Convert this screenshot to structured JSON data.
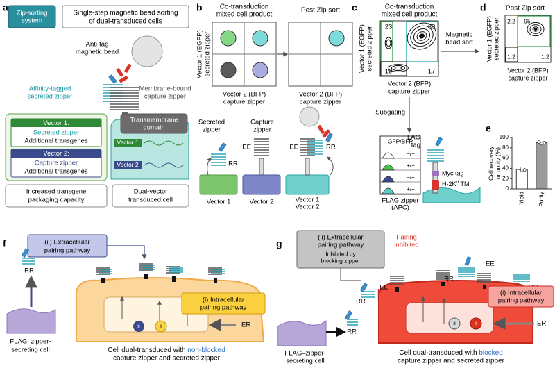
{
  "panel_letters": [
    "a",
    "b",
    "c",
    "d",
    "e",
    "f",
    "g"
  ],
  "a": {
    "badge": [
      "Zip-sorting",
      "system"
    ],
    "heading": [
      "Single-step magnetic bead sorting",
      "of dual-transduced cells"
    ],
    "bead": [
      "Anti-tag",
      "magnetic bead"
    ],
    "secreted": [
      "Affinity-tagged",
      "secreted zipper"
    ],
    "capture": [
      "Membrane-bound",
      "capture zipper"
    ],
    "tm": [
      "Transmembrane",
      "domain"
    ],
    "cell_vectors": [
      "Vector 1",
      "Vector 2"
    ],
    "vector1": {
      "title": "Vector 1:",
      "lines": [
        "Secreted zipper",
        "Additional transgenes"
      ]
    },
    "vector2": {
      "title": "Vector 2:",
      "lines": [
        "Capture zipper",
        "Additional transgenes"
      ]
    },
    "capacity": [
      "Increased transgene",
      "packaging capacity"
    ],
    "cell": [
      "Dual-vector",
      "transduced cell"
    ]
  },
  "b": {
    "before_title": [
      "Co-transduction",
      "mixed cell product"
    ],
    "after_title": "Post Zip sort",
    "y_label": [
      "Vector 1 (EGFP)",
      "secreted zipper"
    ],
    "x_label": [
      "Vector 2 (BFP)",
      "capture zipper"
    ],
    "secreted": [
      "Secreted",
      "zipper"
    ],
    "capture": [
      "Capture",
      "zipper"
    ],
    "zipper_tags": [
      "RR",
      "EE",
      "EE",
      "RR"
    ],
    "cell_labels": [
      "Vector 1",
      "Vector 2",
      "Vector 1",
      "Vector 2"
    ]
  },
  "c": {
    "title": [
      "Co-transduction",
      "mixed cell product"
    ],
    "quadrants": [
      23,
      38,
      19,
      17
    ],
    "y_label": [
      "Vector 1 (EGFP)",
      "secreted zipper"
    ],
    "x_label": [
      "Vector 2 (BFP)",
      "capture zipper"
    ],
    "sort": [
      "Magnetic",
      "bead sort"
    ],
    "subgating": "Subgating",
    "hist_title": "GFP/BFP",
    "hist_rows": [
      "−/−",
      "+/−",
      "−/+",
      "+/+"
    ],
    "hist_x": [
      "FLAG zipper",
      "(APC)"
    ],
    "flag": [
      "FLAG",
      "tag"
    ],
    "myc": "Myc tag",
    "tm": {
      "base": "H-2K",
      "sup": "d",
      "rest": " TM"
    }
  },
  "d": {
    "title": "Post Zip sort",
    "quadrants": [
      2.2,
      95,
      1.2,
      1.2
    ],
    "y_label": [
      "Vector 1 (EGFP)",
      "secreted zipper"
    ],
    "x_label": [
      "Vector 2 (BFP)",
      "capture zipper"
    ]
  },
  "chart_data": {
    "type": "bar",
    "y_label": [
      "Cell recovery",
      "or purity (%)"
    ],
    "categories": [
      "Yield",
      "Purity"
    ],
    "values": [
      38,
      90
    ],
    "points": [
      [
        40,
        36,
        37
      ],
      [
        91,
        88,
        90
      ]
    ],
    "colors": [
      "#ffffff",
      "#9a9a9a"
    ],
    "ylim": [
      0,
      100
    ],
    "yticks": [
      0,
      20,
      40,
      60,
      80,
      100
    ]
  },
  "f": {
    "extracellular": [
      "(ii) Extracellular",
      "pairing pathway"
    ],
    "tag": "RR",
    "secreting_cell": [
      "FLAG–zipper-",
      "secreting cell"
    ],
    "intracellular": [
      "(i) Intracellular",
      "pairing pathway"
    ],
    "er": "ER",
    "markers": [
      "ii",
      "i"
    ],
    "caption": {
      "start": "Cell dual-transduced with ",
      "highlight": "non-blocked",
      "end": "capture zipper and secreted zipper"
    }
  },
  "g": {
    "extracellular": [
      "(ii) Extracellular",
      "pairing pathway"
    ],
    "inhibition": [
      "Inhibited by",
      "blocking zipper"
    ],
    "inhibited": [
      "Pairing",
      "inhibited"
    ],
    "tags": [
      "RR",
      "RR",
      "EE",
      "EE",
      "RR",
      "RR"
    ],
    "secreting_cell": [
      "FLAG–zipper-",
      "secreting cell"
    ],
    "intracellular": [
      "(i) Intracellular",
      "pairing pathway"
    ],
    "er": "ER",
    "markers": [
      "ii",
      "i"
    ],
    "caption": {
      "start": "Cell dual-transduced with ",
      "highlight": "blocked",
      "end": "capture zipper and secreted zipper"
    }
  }
}
